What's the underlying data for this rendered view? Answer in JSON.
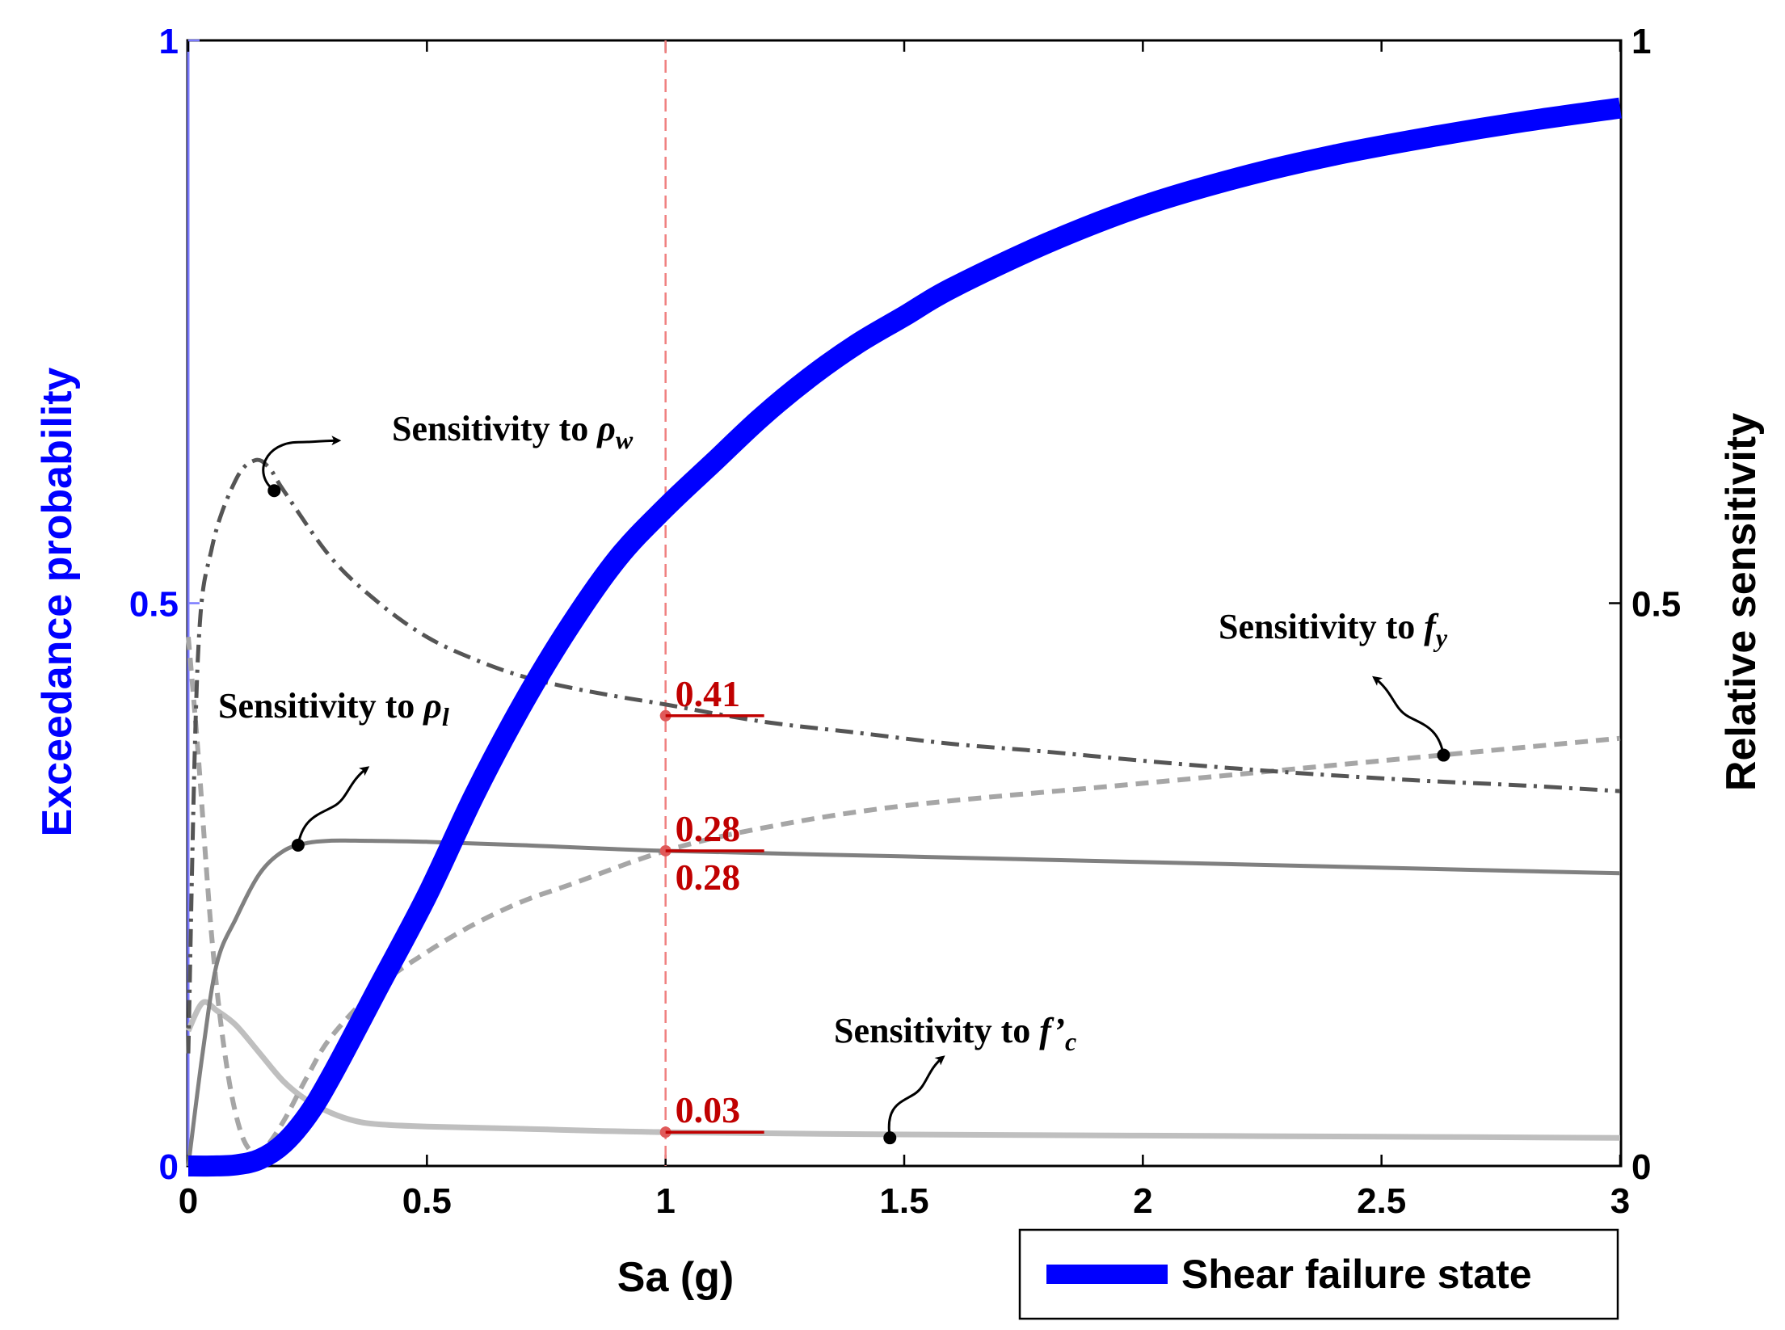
{
  "chart_data": {
    "type": "line",
    "xlabel": "Sa (g)",
    "ylabel_left": "Exceedance probability",
    "ylabel_right": "Relative sensitivity",
    "xlim": [
      0,
      3
    ],
    "ylim_left": [
      0,
      1
    ],
    "ylim_right": [
      0,
      1
    ],
    "x_ticks": [
      "0",
      "0.5",
      "1",
      "1.5",
      "2",
      "2.5",
      "3"
    ],
    "y_ticks_left": [
      "0",
      "0.5",
      "1"
    ],
    "y_ticks_right": [
      "0",
      "0.5",
      "1"
    ],
    "grid": false,
    "legend": {
      "placement": "below-right",
      "entries": [
        {
          "label": "Shear failure state"
        }
      ]
    },
    "colors": {
      "fragility": "#0000ff",
      "rho_w": "#555555",
      "rho_l": "#808080",
      "f_y": "#a6a6a6",
      "f_c": "#bfbfbf",
      "marker_line": "#f08080",
      "value_label": "#c00000"
    },
    "reference_x": 1,
    "series": [
      {
        "name": "Shear failure state",
        "axis": "left",
        "style": "thick-solid",
        "x": [
          0,
          0.05,
          0.1,
          0.15,
          0.2,
          0.25,
          0.3,
          0.4,
          0.5,
          0.6,
          0.7,
          0.8,
          0.9,
          1.0,
          1.1,
          1.2,
          1.3,
          1.4,
          1.5,
          1.6,
          1.8,
          2.0,
          2.2,
          2.4,
          2.6,
          2.8,
          3.0
        ],
        "y": [
          0,
          0,
          0.001,
          0.006,
          0.02,
          0.045,
          0.08,
          0.16,
          0.24,
          0.33,
          0.41,
          0.48,
          0.54,
          0.585,
          0.625,
          0.665,
          0.7,
          0.73,
          0.755,
          0.78,
          0.82,
          0.853,
          0.878,
          0.898,
          0.914,
          0.928,
          0.94
        ]
      },
      {
        "name": "Sensitivity to ρw",
        "axis": "right",
        "style": "dash-dot",
        "x": [
          0,
          0.02,
          0.05,
          0.1,
          0.14,
          0.17,
          0.2,
          0.3,
          0.4,
          0.5,
          0.6,
          0.7,
          0.8,
          0.9,
          1.0,
          1.2,
          1.4,
          1.6,
          1.8,
          2.0,
          2.2,
          2.4,
          2.6,
          2.8,
          3.0
        ],
        "y": [
          0.1,
          0.45,
          0.55,
          0.61,
          0.627,
          0.62,
          0.6,
          0.54,
          0.5,
          0.47,
          0.45,
          0.435,
          0.425,
          0.417,
          0.41,
          0.395,
          0.385,
          0.375,
          0.368,
          0.36,
          0.353,
          0.347,
          0.342,
          0.338,
          0.333
        ]
      },
      {
        "name": "Sensitivity to ρl",
        "axis": "right",
        "style": "solid",
        "x": [
          0,
          0.03,
          0.06,
          0.1,
          0.15,
          0.2,
          0.25,
          0.3,
          0.35,
          0.5,
          0.7,
          1.0,
          1.5,
          2.0,
          2.5,
          3.0
        ],
        "y": [
          0.0,
          0.1,
          0.18,
          0.22,
          0.26,
          0.28,
          0.287,
          0.289,
          0.289,
          0.288,
          0.285,
          0.28,
          0.275,
          0.27,
          0.265,
          0.26
        ]
      },
      {
        "name": "Sensitivity to fy",
        "axis": "right",
        "style": "dashed",
        "x": [
          0,
          0.02,
          0.05,
          0.08,
          0.11,
          0.14,
          0.16,
          0.2,
          0.25,
          0.3,
          0.4,
          0.5,
          0.6,
          0.7,
          0.8,
          1.0,
          1.2,
          1.5,
          2.0,
          2.5,
          3.0
        ],
        "y": [
          0.47,
          0.37,
          0.2,
          0.09,
          0.03,
          0.01,
          0.015,
          0.04,
          0.08,
          0.115,
          0.16,
          0.19,
          0.215,
          0.235,
          0.25,
          0.28,
          0.3,
          0.32,
          0.34,
          0.36,
          0.38
        ]
      },
      {
        "name": "Sensitivity to f'c",
        "axis": "right",
        "style": "solid-light",
        "x": [
          0,
          0.03,
          0.06,
          0.1,
          0.15,
          0.2,
          0.25,
          0.3,
          0.35,
          0.4,
          0.5,
          0.7,
          1.0,
          1.5,
          2.0,
          2.5,
          3.0
        ],
        "y": [
          0.12,
          0.145,
          0.138,
          0.125,
          0.1,
          0.075,
          0.058,
          0.047,
          0.04,
          0.037,
          0.035,
          0.033,
          0.03,
          0.028,
          0.027,
          0.026,
          0.025
        ]
      }
    ],
    "annotations": [
      {
        "id": "rho_w",
        "prefix": "Sensitivity to ",
        "symbol": "ρ",
        "sub": "w",
        "point_x": 0.18,
        "point_y": 0.6
      },
      {
        "id": "rho_l",
        "prefix": "Sensitivity to ",
        "symbol": "ρ",
        "sub": "l",
        "point_x": 0.23,
        "point_y": 0.285
      },
      {
        "id": "f_y",
        "prefix": "Sensitivity to ",
        "symbol": "f",
        "sub": "y",
        "point_x": 2.63,
        "point_y": 0.365
      },
      {
        "id": "f_c",
        "prefix": "Sensitivity to ",
        "symbol": "f’",
        "sub": "c",
        "point_x": 1.47,
        "point_y": 0.025
      }
    ],
    "value_labels": [
      {
        "text": "0.41",
        "y": 0.4,
        "position": "above"
      },
      {
        "text": "0.28",
        "y": 0.28,
        "position": "above"
      },
      {
        "text": "0.28",
        "y": 0.28,
        "position": "below"
      },
      {
        "text": "0.03",
        "y": 0.03,
        "position": "above"
      }
    ]
  }
}
